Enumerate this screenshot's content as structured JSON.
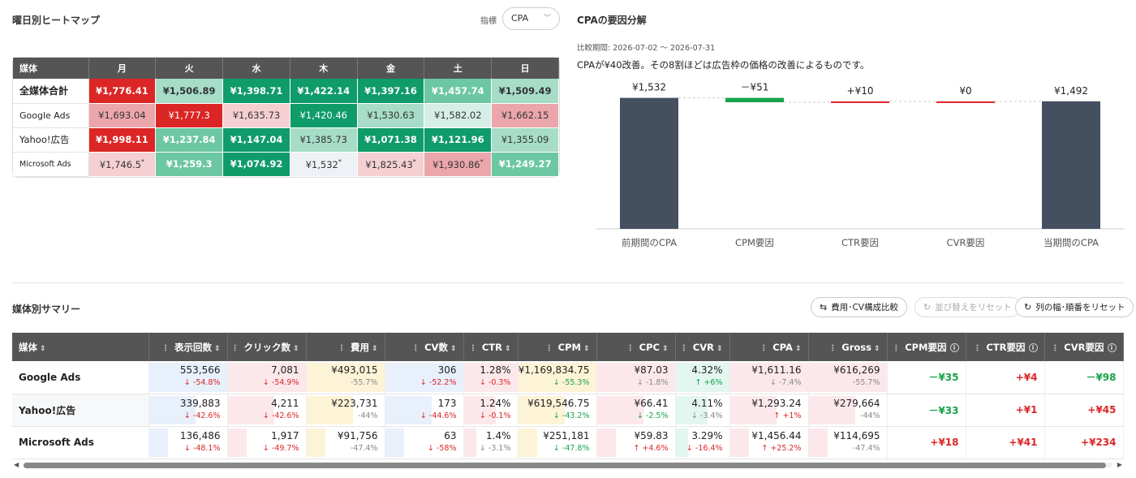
{
  "heatmap": {
    "title": "曜日別ヒートマップ",
    "metric_label": "指標",
    "metric_value": "CPA",
    "header_label": "媒体",
    "days": [
      "月",
      "火",
      "水",
      "木",
      "金",
      "土",
      "日"
    ],
    "rows": [
      {
        "label": "全媒体合計",
        "cells": [
          "¥1,776.41",
          "¥1,506.89",
          "¥1,398.71",
          "¥1,422.14",
          "¥1,397.16",
          "¥1,457.74",
          "¥1,509.49"
        ]
      },
      {
        "label": "Google Ads",
        "cells": [
          "¥1,693.04",
          "¥1,777.3",
          "¥1,635.73",
          "¥1,420.46",
          "¥1,530.63",
          "¥1,582.02",
          "¥1,662.15"
        ]
      },
      {
        "label": "Yahoo!広告",
        "cells": [
          "¥1,998.11",
          "¥1,237.84",
          "¥1,147.04",
          "¥1,385.73",
          "¥1,071.38",
          "¥1,121.96",
          "¥1,355.09"
        ]
      },
      {
        "label": "Microsoft Ads",
        "cells": [
          "¥1,746.5",
          "¥1,259.3",
          "¥1,074.92",
          "¥1,532",
          "¥1,825.43",
          "¥1,930.86",
          "¥1,249.27"
        ]
      }
    ],
    "star_mark": "*"
  },
  "waterfall": {
    "title": "CPAの要因分解",
    "period": "比較期間: 2026-07-02 〜 2026-07-31",
    "summary": "CPAが¥40改善。その8割ほどは広告枠の価格の改善によるものです。",
    "colors": {
      "bar": "#444f60",
      "neg": "#16a34a",
      "pos": "#dc2626"
    },
    "ylim": [
      0,
      1600
    ]
  },
  "chart_data": {
    "type": "bar",
    "title": "CPAの要因分解",
    "categories": [
      "前期間のCPA",
      "CPM要因",
      "CTR要因",
      "CVR要因",
      "当期間のCPA"
    ],
    "values": [
      1532,
      -51,
      10,
      0,
      1492
    ],
    "labels": [
      "¥1,532",
      "－¥51",
      "+¥10",
      "¥0",
      "¥1,492"
    ],
    "kinds": [
      "total",
      "delta",
      "delta",
      "delta",
      "total"
    ]
  },
  "summary": {
    "title": "媒体別サマリー",
    "buttons": {
      "compare": "費用･CV構成比較",
      "sort_reset": "並び替えをリセット",
      "cols_reset": "列の幅･順番をリセット"
    },
    "columns": [
      "媒体",
      "表示回数",
      "クリック数",
      "費用",
      "CV数",
      "CTR",
      "CPM",
      "CPC",
      "CVR",
      "CPA",
      "Gross",
      "CPM要因",
      "CTR要因",
      "CVR要因"
    ],
    "rows": [
      {
        "name": "Google Ads",
        "cells": [
          {
            "v": "553,566",
            "c": "↓ -54.8%"
          },
          {
            "v": "7,081",
            "c": "↓ -54.9%"
          },
          {
            "v": "¥493,015",
            "c": "-55.7%"
          },
          {
            "v": "306",
            "c": "↓ -52.2%"
          },
          {
            "v": "1.28%",
            "c": "↓ -0.3%"
          },
          {
            "v": "¥1,169,834.75",
            "c": "↓ -55.3%"
          },
          {
            "v": "¥87.03",
            "c": "↓ -1.8%"
          },
          {
            "v": "4.32%",
            "c": "↑ +6%"
          },
          {
            "v": "¥1,611.16",
            "c": "↓ -7.4%"
          },
          {
            "v": "¥616,269",
            "c": "-55.7%"
          }
        ],
        "factors": [
          "－¥35",
          "+¥4",
          "－¥98"
        ]
      },
      {
        "name": "Yahoo!広告",
        "cells": [
          {
            "v": "339,883",
            "c": "↓ -42.6%"
          },
          {
            "v": "4,211",
            "c": "↓ -42.6%"
          },
          {
            "v": "¥223,731",
            "c": "-44%"
          },
          {
            "v": "173",
            "c": "↓ -44.6%"
          },
          {
            "v": "1.24%",
            "c": "↓ -0.1%"
          },
          {
            "v": "¥619,546.75",
            "c": "↓ -43.2%"
          },
          {
            "v": "¥66.41",
            "c": "↓ -2.5%"
          },
          {
            "v": "4.11%",
            "c": "↓ -3.4%"
          },
          {
            "v": "¥1,293.24",
            "c": "↑ +1%"
          },
          {
            "v": "¥279,664",
            "c": "-44%"
          }
        ],
        "factors": [
          "－¥33",
          "+¥1",
          "+¥45"
        ]
      },
      {
        "name": "Microsoft Ads",
        "cells": [
          {
            "v": "136,486",
            "c": "↓ -48.1%"
          },
          {
            "v": "1,917",
            "c": "↓ -49.7%"
          },
          {
            "v": "¥91,756",
            "c": "-47.4%"
          },
          {
            "v": "63",
            "c": "↓ -58%"
          },
          {
            "v": "1.4%",
            "c": "↓ -3.1%"
          },
          {
            "v": "¥251,181",
            "c": "↓ -47.8%"
          },
          {
            "v": "¥59.83",
            "c": "↑ +4.6%"
          },
          {
            "v": "3.29%",
            "c": "↓ -16.4%"
          },
          {
            "v": "¥1,456.44",
            "c": "↑ +25.2%"
          },
          {
            "v": "¥114,695",
            "c": "-47.4%"
          }
        ],
        "factors": [
          "+¥18",
          "+¥41",
          "+¥234"
        ]
      }
    ]
  }
}
